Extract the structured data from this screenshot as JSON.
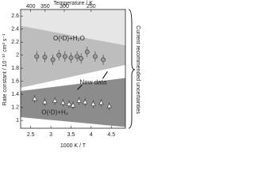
{
  "chart_data": {
    "type": "scatter",
    "x_label": "1000 K / T",
    "y_label": "Rate constant / 10⁻¹⁰ cm³ s⁻¹",
    "x2_label": "Temperature / K",
    "side_label": "Current recommended uncertainties",
    "xlim": [
      2.25,
      4.85
    ],
    "xticks": [
      2.5,
      3.0,
      3.5,
      4.0,
      4.5
    ],
    "x2ticks": [
      400,
      350,
      300,
      250
    ],
    "ylim": [
      0.88,
      2.7
    ],
    "yticks": [
      1.0,
      1.2,
      1.4,
      1.6,
      1.8,
      2.0,
      2.2,
      2.4,
      2.6
    ],
    "bands": [
      {
        "color": "#e6e6e6",
        "x": [
          2.25,
          4.85
        ],
        "upper": [
          2.7,
          2.7
        ],
        "lower": [
          2.45,
          2.15
        ]
      },
      {
        "color": "#bdbdbd",
        "x": [
          2.25,
          4.85
        ],
        "upper": [
          2.45,
          2.15
        ],
        "lower": [
          1.5,
          1.85
        ]
      },
      {
        "color": "#8c8c8c",
        "x": [
          2.25,
          4.85
        ],
        "upper": [
          1.45,
          1.65
        ],
        "lower": [
          1.05,
          0.9
        ]
      }
    ],
    "series": [
      {
        "marker": "circle",
        "color": "#9a9a9a",
        "x": [
          2.65,
          2.85,
          3.05,
          3.2,
          3.35,
          3.5,
          3.65,
          3.75,
          3.9,
          4.1,
          4.3
        ],
        "values": [
          1.98,
          1.97,
          1.93,
          2.0,
          1.98,
          1.96,
          1.98,
          1.95,
          2.05,
          1.98,
          1.93
        ],
        "errors": [
          0.08,
          0.08,
          0.08,
          0.08,
          0.08,
          0.08,
          0.08,
          0.08,
          0.08,
          0.08,
          0.08
        ]
      },
      {
        "marker": "triangle",
        "color": "#ffffff",
        "x": [
          2.6,
          2.85,
          3.1,
          3.3,
          3.45,
          3.55,
          3.7,
          3.85,
          4.05,
          4.25,
          4.45
        ],
        "values": [
          1.33,
          1.28,
          1.3,
          1.27,
          1.25,
          1.23,
          1.3,
          1.28,
          1.25,
          1.27,
          1.22
        ],
        "errors": [
          0.06,
          0.06,
          0.06,
          0.06,
          0.06,
          0.06,
          0.06,
          0.06,
          0.06,
          0.06,
          0.06
        ]
      }
    ],
    "annotations": [
      {
        "text": "O(¹D)+H₂O",
        "x": 3.45,
        "y": 2.25
      },
      {
        "text": "O(¹D)+H₂",
        "x": 3.1,
        "y": 1.12
      },
      {
        "text": "New data",
        "x": 4.05,
        "y": 1.58
      }
    ]
  }
}
